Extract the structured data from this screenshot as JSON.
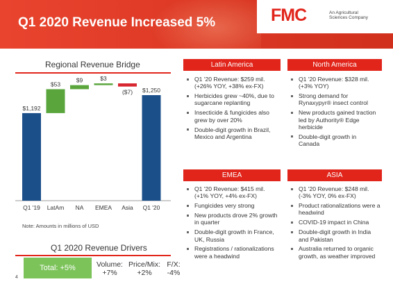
{
  "slide": {
    "title": "Q1 2020 Revenue Increased 5%",
    "page_number": "4",
    "note": "Note: Amounts in millions of USD",
    "colors": {
      "brand_red": "#e1251b",
      "bar_blue": "#1b4f8a",
      "bar_green": "#5aa63c",
      "bar_red": "#d7262f"
    }
  },
  "logo": {
    "mark": "FMC",
    "tagline_line1": "An Agricultural",
    "tagline_line2": "Sciences Company"
  },
  "chart_data": {
    "type": "bar",
    "subtype": "waterfall",
    "title": "Regional Revenue Bridge",
    "categories": [
      "Q1 '19",
      "LatAm",
      "NA",
      "EMEA",
      "Asia",
      "Q1 '20"
    ],
    "values": [
      1192,
      53,
      9,
      3,
      -7,
      1250
    ],
    "labels": [
      "$1,192",
      "$53",
      "$9",
      "$3",
      "($7)",
      "$1,250"
    ],
    "kinds": [
      "total",
      "increase",
      "increase",
      "increase",
      "decrease",
      "total"
    ],
    "ylim": [
      0,
      1300
    ],
    "grid": false
  },
  "drivers": {
    "title": "Q1 2020 Revenue Drivers",
    "total": "Total: +5%",
    "items": [
      {
        "label": "Volume:",
        "value": "+7%"
      },
      {
        "label": "Price/Mix:",
        "value": "+2%"
      },
      {
        "label": "F/X:",
        "value": "-4%"
      }
    ]
  },
  "regions": {
    "latin_america": {
      "title": "Latin America",
      "bullets": [
        "Q1 '20 Revenue: $259 mil. (+26% YOY, +38% ex-FX)",
        "Herbicides grew ~40%, due to sugarcane replanting",
        "Insecticide & fungicides also grew by over 20%",
        "Double-digit growth in Brazil, Mexico and Argentina"
      ]
    },
    "north_america": {
      "title": "North America",
      "bullets": [
        "Q1 '20 Revenue: $328 mil. (+3% YOY)",
        "Strong demand for Rynaxypyr® insect control",
        "New products gained traction led by Authority® Edge herbicide",
        "Double-digit growth in Canada"
      ]
    },
    "emea": {
      "title": "EMEA",
      "bullets": [
        "Q1 '20 Revenue: $415 mil. (+1% YOY, +4% ex-FX)",
        "Fungicides very strong",
        "New products drove 2% growth in quarter",
        "Double-digit growth in France, UK, Russia",
        "Registrations / rationalizations were a headwind"
      ]
    },
    "asia": {
      "title": "ASIA",
      "bullets": [
        "Q1 '20 Revenue: $248 mil. (-3% YOY, 0% ex-FX)",
        "Product rationalizations were a headwind",
        "COVID-19 impact in China",
        "Double-digit growth in India and Pakistan",
        "Australia returned to organic growth, as weather improved"
      ]
    }
  }
}
